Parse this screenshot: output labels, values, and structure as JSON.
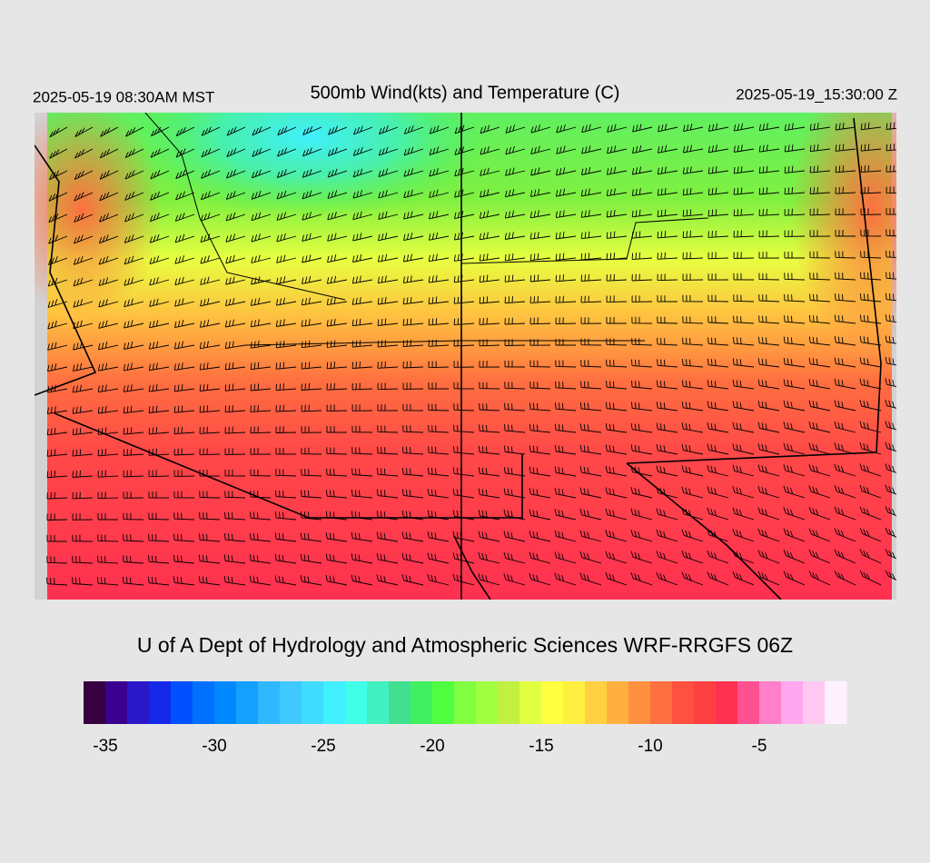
{
  "header": {
    "left": "2025-05-19 08:30AM MST",
    "title": "500mb Wind(kts) and Temperature (C)",
    "right": "2025-05-19_15:30:00 Z"
  },
  "credit": "U of A Dept of Hydrology and Atmospheric Sciences WRF-RRGFS 06Z",
  "colorbar": {
    "range": [
      -36,
      -1
    ],
    "ticks": [
      -35,
      -30,
      -25,
      -20,
      -15,
      -10,
      -5
    ],
    "colors": [
      "#380040",
      "#3a0090",
      "#2a18c8",
      "#1428e8",
      "#0050ff",
      "#0070ff",
      "#0088ff",
      "#14a0ff",
      "#30b8ff",
      "#40c8ff",
      "#40dcff",
      "#40f0ff",
      "#40ffe8",
      "#40f0c0",
      "#40e090",
      "#40f060",
      "#50ff40",
      "#80ff40",
      "#a0ff40",
      "#c0f040",
      "#e0ff40",
      "#ffff40",
      "#fff040",
      "#ffd040",
      "#ffb040",
      "#ff9040",
      "#ff7040",
      "#ff5040",
      "#ff4040",
      "#ff3050",
      "#ff5090",
      "#ff80c8",
      "#ffa8f0",
      "#ffc8f0",
      "#fff0ff"
    ]
  }
}
